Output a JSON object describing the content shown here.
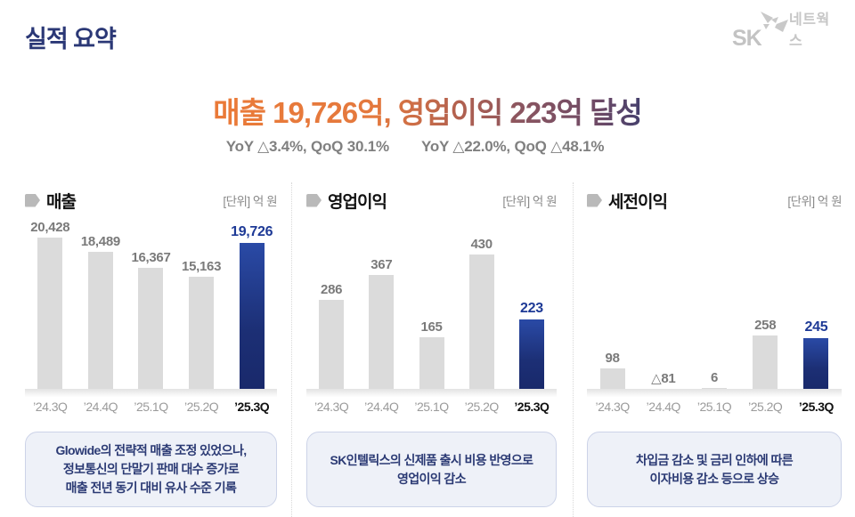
{
  "page": {
    "title": "실적 요약"
  },
  "logo": {
    "company": "SK",
    "brand": "네트웍스"
  },
  "headline": {
    "text": "매출 19,726억, 영업이익 223억 달성",
    "sub_left": "YoY △3.4%, QoQ 30.1%",
    "sub_right": "YoY △22.0%, QoQ △48.1%",
    "gradient_colors": [
      "#ec7a36",
      "#b06050",
      "#6e4a66",
      "#2e3a6e"
    ]
  },
  "colors": {
    "title_navy": "#2b3876",
    "bar_gray": "#dbdbdb",
    "bar_highlight_top": "#2a4aa6",
    "bar_highlight_bottom": "#19296b",
    "value_label_gray": "#7a7a7a",
    "value_label_blue": "#1e3a96",
    "note_bg": "#eef1f8",
    "note_border": "#ccd3e8",
    "note_text": "#2b3a74",
    "logo_gray": "#c3c3c3"
  },
  "icons": {
    "panel_bullet": "arrow-tag-icon",
    "logo_mark": "butterfly-icon"
  },
  "chart_data": [
    {
      "type": "bar",
      "title": "매출",
      "unit": "[단위] 억 원",
      "categories": [
        "’24.3Q",
        "’24.4Q",
        "’25.1Q",
        "’25.2Q",
        "’25.3Q"
      ],
      "values": [
        20428,
        18489,
        16367,
        15163,
        19726
      ],
      "labels": [
        "20,428",
        "18,489",
        "16,367",
        "15,163",
        "19,726"
      ],
      "highlight_index": 4,
      "ylim": [
        0,
        21000
      ],
      "grid": false,
      "legend": false,
      "note": "Glowide의 전략적 매출 조정 있었으나,\n정보통신의 단말기 판매 대수 증가로\n매출 전년 동기 대비 유사 수준 기록"
    },
    {
      "type": "bar",
      "title": "영업이익",
      "unit": "[단위] 억 원",
      "categories": [
        "’24.3Q",
        "’24.4Q",
        "’25.1Q",
        "’25.2Q",
        "’25.3Q"
      ],
      "values": [
        286,
        367,
        165,
        430,
        223
      ],
      "labels": [
        "286",
        "367",
        "165",
        "430",
        "223"
      ],
      "highlight_index": 4,
      "ylim": [
        0,
        500
      ],
      "grid": false,
      "legend": false,
      "note": "SK인텔릭스의 신제품 출시 비용 반영으로\n영업이익 감소"
    },
    {
      "type": "bar",
      "title": "세전이익",
      "unit": "[단위] 억 원",
      "categories": [
        "’24.3Q",
        "’24.4Q",
        "’25.1Q",
        "’25.2Q",
        "’25.3Q"
      ],
      "values": [
        98,
        -81,
        6,
        258,
        245
      ],
      "labels": [
        "98",
        "△81",
        "6",
        "258",
        "245"
      ],
      "highlight_index": 4,
      "ylim": [
        0,
        750
      ],
      "grid": false,
      "legend": false,
      "note": "차입금 감소 및 금리 인하에 따른\n이자비용 감소 등으로 상승"
    }
  ]
}
